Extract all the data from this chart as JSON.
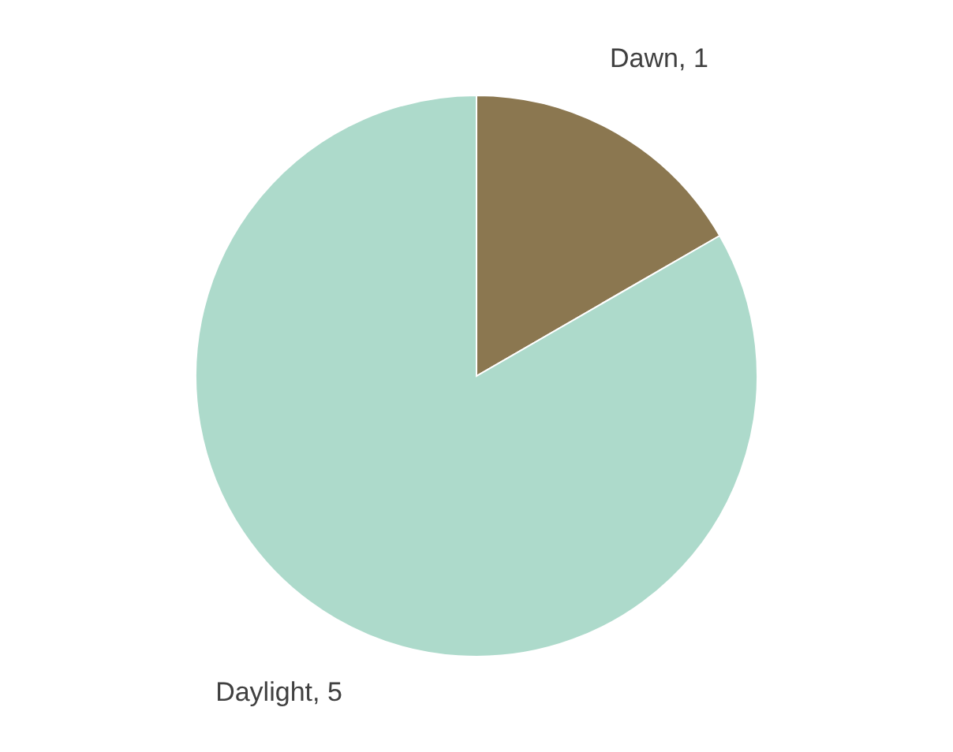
{
  "chart_data": {
    "type": "pie",
    "categories": [
      "Dawn",
      "Daylight"
    ],
    "values": [
      1,
      5
    ],
    "colors": [
      "#8b7750",
      "#addacb"
    ],
    "value_labels": [
      ", 1",
      ", 5"
    ]
  }
}
